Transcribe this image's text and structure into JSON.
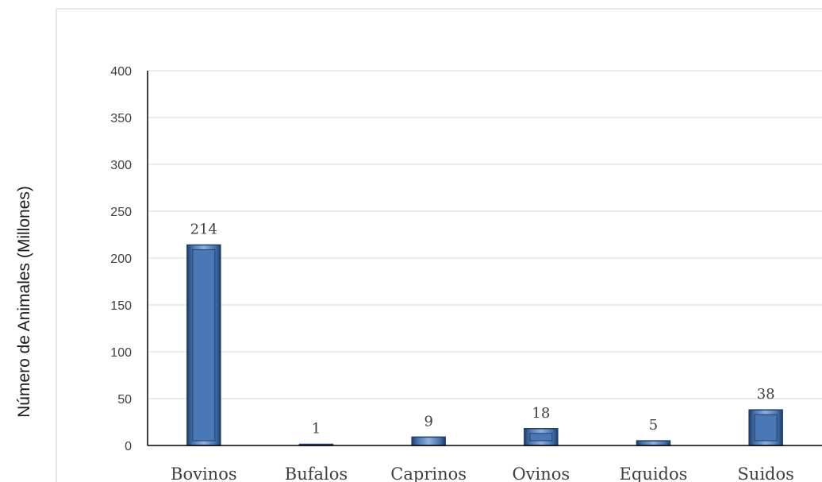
{
  "chart_data": {
    "type": "bar",
    "title": "",
    "xlabel": "",
    "ylabel": "Número de Animales (Millones)",
    "categories": [
      "Bovinos",
      "Bufalos",
      "Caprinos",
      "Ovinos",
      "Equidos",
      "Suidos"
    ],
    "values": [
      214,
      1,
      9,
      18,
      5,
      38
    ],
    "data_labels": [
      "214",
      "1",
      "9",
      "18",
      "5",
      "38"
    ],
    "ylim": [
      0,
      400
    ],
    "yticks": [
      0,
      50,
      100,
      150,
      200,
      250,
      300,
      350,
      400
    ],
    "ytick_labels": [
      "0",
      "50",
      "100",
      "150",
      "200",
      "250",
      "300",
      "350",
      "400"
    ],
    "grid": "horizontal",
    "legend": "none",
    "colors": {
      "bar_fill": "#4a78b4",
      "bar_edge": "#1f3f6e",
      "bar_highlight": "#8fb0dc",
      "grid": "#d9d9d9",
      "axis": "#000000",
      "frame": "#d0d0d0",
      "text": "#404040"
    }
  }
}
